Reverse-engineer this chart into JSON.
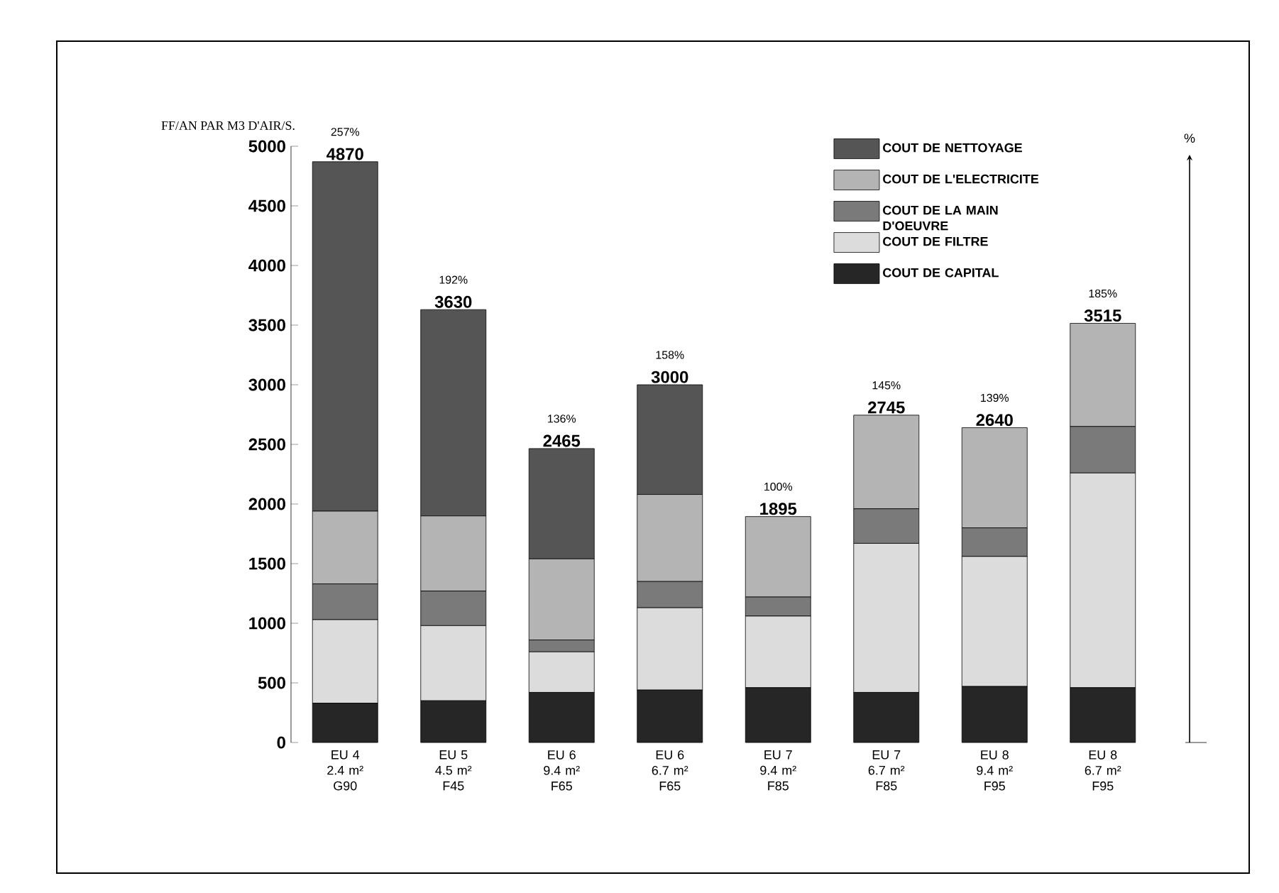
{
  "chart_data": {
    "type": "bar",
    "stacked": true,
    "ylabel": "FF/AN PAR M3 D'AIR/S.",
    "categories": [
      "EU 4 2.4 m² G90",
      "EU 5 4.5 m² F45",
      "EU 6 9.4 m² F65",
      "EU 6 6.7 m² F65",
      "EU 7 9.4 m² F85",
      "EU 7 6.7 m² F85",
      "EU 8 9.4 m² F95",
      "EU 8 6.7 m² F95"
    ],
    "series": [
      {
        "name": "COUT DE CAPITAL",
        "color": "#262626",
        "values": [
          330,
          350,
          420,
          440,
          460,
          420,
          470,
          460
        ]
      },
      {
        "name": "COUT DE FILTRE",
        "color": "#dcdcdc",
        "values": [
          700,
          630,
          340,
          690,
          600,
          1250,
          1090,
          1800
        ]
      },
      {
        "name": "COUT DE LA MAIN D'OEUVRE",
        "color": "#7a7a7a",
        "values": [
          300,
          290,
          100,
          220,
          160,
          290,
          240,
          390
        ]
      },
      {
        "name": "COUT DE L'ELECTRICITE",
        "color": "#b4b4b4",
        "values": [
          610,
          630,
          680,
          730,
          675,
          785,
          840,
          865
        ]
      },
      {
        "name": "COUT DE NETTOYAGE",
        "color": "#555555",
        "values": [
          2930,
          1730,
          925,
          920,
          null,
          null,
          null,
          null
        ]
      }
    ],
    "totals": [
      "4870",
      "3630",
      "2465",
      "3000",
      "1895",
      "2745",
      "2640",
      "3515"
    ],
    "annotations": [
      "257%",
      "192%",
      "136%",
      "158%",
      "100%",
      "145%",
      "139%",
      "185%",
      "%"
    ],
    "ylim": [
      0,
      5000
    ],
    "yticks": [
      0,
      500,
      1000,
      1500,
      2000,
      2500,
      3000,
      3500,
      4000,
      4500,
      5000
    ],
    "legend": "top right"
  }
}
